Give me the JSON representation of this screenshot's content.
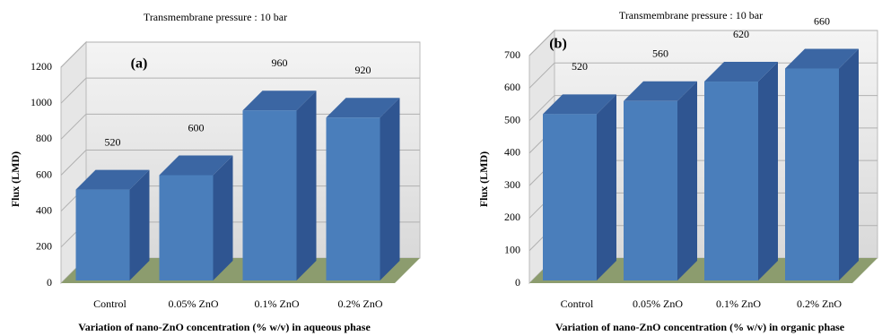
{
  "chart_data": [
    {
      "type": "bar3d",
      "title": "Transmembrane pressure : 10 bar",
      "panel_label": "(a)",
      "y_label": "Flux (LMD)",
      "x_label": "Variation of nano-ZnO concentration (% w/v) in aqueous phase",
      "categories": [
        "Control",
        "0.05% ZnO",
        "0.1% ZnO",
        "0.2% ZnO"
      ],
      "values": [
        520,
        600,
        960,
        920
      ],
      "color": "#4a7ebb",
      "ylim": [
        0,
        1200
      ],
      "yticks": [
        0,
        200,
        400,
        600,
        800,
        1000,
        1200
      ],
      "grid": true
    },
    {
      "type": "bar3d",
      "title": "Transmembrane pressure : 10 bar",
      "panel_label": "(b)",
      "y_label": "Flux (LMD)",
      "x_label": "Variation of nano-ZnO concentration (% w/v) in organic phase",
      "categories": [
        "Control",
        "0.05% ZnO",
        "0.1% ZnO",
        "0.2% ZnO"
      ],
      "values": [
        520,
        560,
        620,
        660
      ],
      "color": "#4a7ebb",
      "ylim": [
        0,
        700
      ],
      "yticks": [
        0,
        100,
        200,
        300,
        400,
        500,
        600,
        700
      ],
      "grid": true
    }
  ]
}
